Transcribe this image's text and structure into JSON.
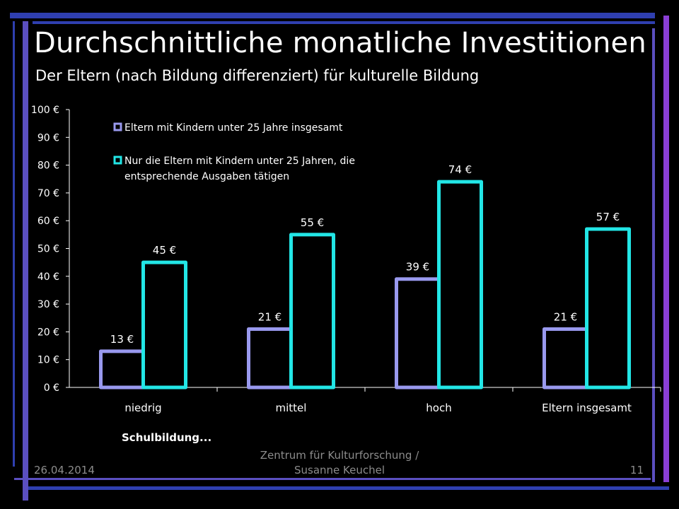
{
  "slide": {
    "title": "Durchschnittliche monatliche Investitionen",
    "subtitle": "Der Eltern (nach Bildung differenziert) für kulturelle Bildung",
    "footer_date": "26.04.2014",
    "footer_center_line1": "Zentrum für Kulturforschung /",
    "footer_center_line2": "Susanne Keuchel",
    "page_number": "11"
  },
  "colors": {
    "background": "#000000",
    "frame_purple": "#5b4fc0",
    "frame_blue": "#2f3fb0",
    "frame_violet": "#8a3fd6",
    "series1": "#9999ee",
    "series2": "#22e6e6",
    "text": "#ffffff",
    "footer_text": "#8c8c8c"
  },
  "chart_data": {
    "type": "bar",
    "title": "",
    "xlabel": "Schulbildung...",
    "ylabel": "",
    "categories": [
      "niedrig",
      "mittel",
      "hoch",
      "Eltern insgesamt"
    ],
    "series": [
      {
        "name": "Eltern mit Kindern unter 25 Jahre insgesamt",
        "values": [
          13,
          21,
          39,
          21
        ],
        "labels": [
          "13 €",
          "21 €",
          "39 €",
          "21 €"
        ]
      },
      {
        "name": "Nur die Eltern mit Kindern unter 25 Jahren, die entsprechende Ausgaben tätigen",
        "legend_lines": [
          "Nur die Eltern mit Kindern unter 25 Jahren, die",
          "entsprechende Ausgaben tätigen"
        ],
        "values": [
          45,
          55,
          74,
          57
        ],
        "labels": [
          "45 €",
          "55 €",
          "74 €",
          "57 €"
        ]
      }
    ],
    "ylim": [
      0,
      100
    ],
    "yticks": [
      "0 €",
      "10 €",
      "20 €",
      "30 €",
      "40 €",
      "50 €",
      "60 €",
      "70 €",
      "80 €",
      "90 €",
      "100 €"
    ],
    "grid": false,
    "legend_position": "top-left",
    "bar_style": "outline"
  }
}
